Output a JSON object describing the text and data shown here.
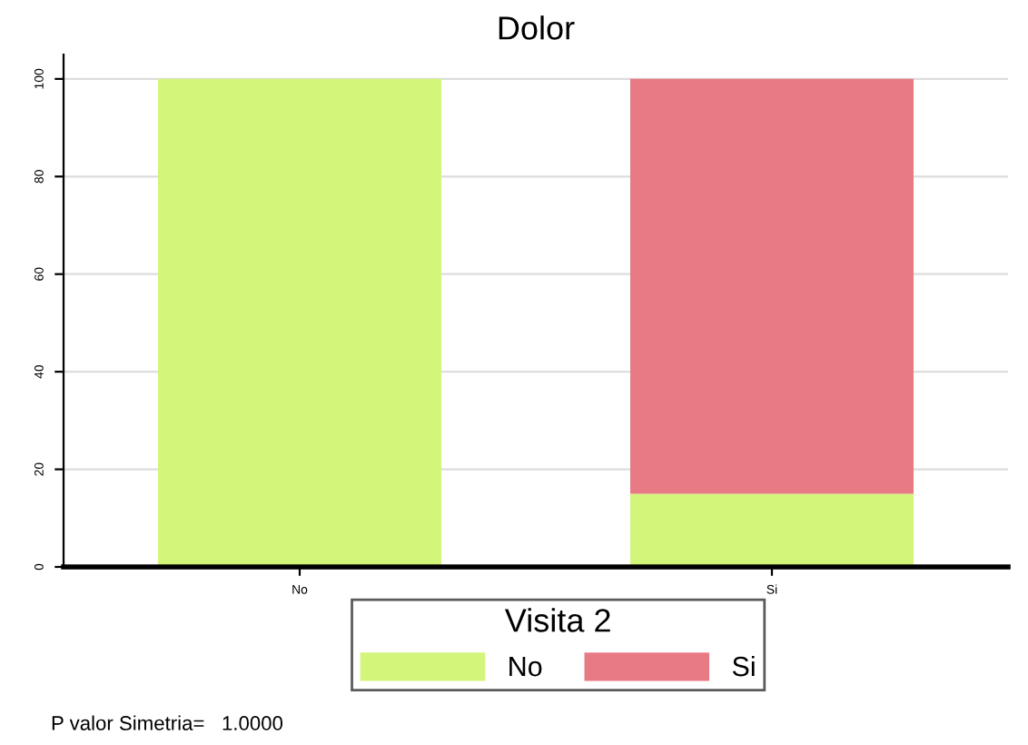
{
  "chart_data": {
    "type": "bar",
    "title": "Dolor",
    "stacked": true,
    "categories": [
      "No",
      "Si"
    ],
    "series": [
      {
        "name": "No",
        "color": "#d2f57a",
        "values": [
          100,
          15
        ]
      },
      {
        "name": "Si",
        "color": "#e87a84",
        "values": [
          0,
          85
        ]
      }
    ],
    "ylim": [
      0,
      105
    ],
    "yticks": [
      0,
      20,
      40,
      60,
      80,
      100
    ],
    "grid": "y",
    "legend": "bottom",
    "legend_title": "Visita 2",
    "annotations": [
      "P valor Simetria=   1.0000"
    ]
  }
}
